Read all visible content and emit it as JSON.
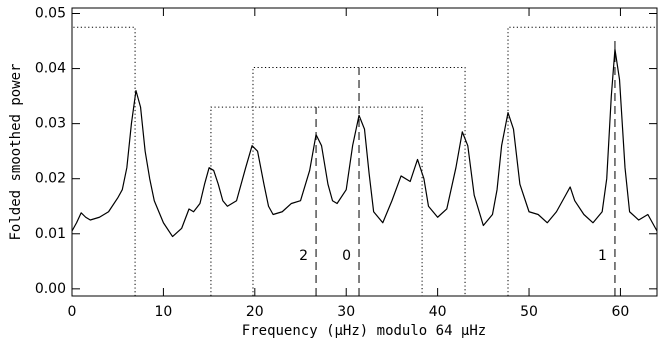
{
  "chart_data": {
    "type": "line",
    "xlabel": "Frequency (μHz) modulo 64 μHz",
    "ylabel": "Folded smoothed power",
    "x": [
      0,
      0.5,
      1,
      1.5,
      2,
      3,
      4,
      5,
      5.5,
      6,
      6.5,
      7,
      7.5,
      8,
      8.5,
      9,
      10,
      11,
      12,
      12.8,
      13.3,
      14,
      14.5,
      15,
      15.5,
      16,
      16.5,
      17,
      18,
      19,
      19.7,
      20.3,
      21,
      21.5,
      22,
      23,
      24,
      25,
      26,
      26.7,
      27.3,
      28,
      28.5,
      29,
      30,
      30.7,
      31.4,
      32,
      32.5,
      33,
      34,
      35,
      36,
      37,
      37.8,
      38.5,
      39,
      40,
      41,
      42,
      42.7,
      43.3,
      44,
      45,
      46,
      46.5,
      47,
      47.7,
      48.3,
      49,
      50,
      51,
      52,
      53,
      54,
      54.5,
      55,
      56,
      57,
      58,
      58.5,
      59,
      59.4,
      59.9,
      60.5,
      61,
      62,
      63,
      64
    ],
    "series": [
      {
        "color": "#000000",
        "values": [
          0.0105,
          0.012,
          0.0138,
          0.013,
          0.0125,
          0.013,
          0.014,
          0.0165,
          0.018,
          0.022,
          0.03,
          0.036,
          0.033,
          0.025,
          0.02,
          0.016,
          0.012,
          0.0095,
          0.011,
          0.0145,
          0.014,
          0.0155,
          0.019,
          0.022,
          0.0215,
          0.019,
          0.016,
          0.015,
          0.016,
          0.022,
          0.026,
          0.025,
          0.019,
          0.015,
          0.0135,
          0.014,
          0.0155,
          0.016,
          0.0215,
          0.028,
          0.026,
          0.019,
          0.016,
          0.0155,
          0.018,
          0.026,
          0.0315,
          0.029,
          0.021,
          0.014,
          0.012,
          0.016,
          0.0205,
          0.0195,
          0.0235,
          0.02,
          0.015,
          0.013,
          0.0145,
          0.022,
          0.0285,
          0.026,
          0.017,
          0.0115,
          0.0135,
          0.018,
          0.026,
          0.032,
          0.029,
          0.019,
          0.014,
          0.0135,
          0.012,
          0.014,
          0.017,
          0.0185,
          0.016,
          0.0135,
          0.012,
          0.014,
          0.02,
          0.035,
          0.0435,
          0.038,
          0.022,
          0.014,
          0.0125,
          0.0135,
          0.0105
        ]
      }
    ],
    "boxes": [
      {
        "x0": 0,
        "x1": 6.9,
        "y": 0.0475
      },
      {
        "x0": 15.2,
        "x1": 38.3,
        "y": 0.033
      },
      {
        "x0": 19.8,
        "x1": 43.0,
        "y": 0.0402
      },
      {
        "x0": 47.7,
        "x1": 64,
        "y": 0.0475
      }
    ],
    "markers": [
      {
        "x": 26.7,
        "y": 0.033,
        "label": "2"
      },
      {
        "x": 31.4,
        "y": 0.0402,
        "label": "0"
      },
      {
        "x": 59.4,
        "y": 0.0455,
        "label": "1"
      }
    ],
    "xlim": [
      0,
      64
    ],
    "ylim": [
      -0.0013,
      0.051
    ],
    "xticks": [
      0,
      10,
      20,
      30,
      40,
      50,
      60
    ],
    "yticks": [
      {
        "value": 0,
        "label": "0.00"
      },
      {
        "value": 0.01,
        "label": "0.01"
      },
      {
        "value": 0.02,
        "label": "0.02"
      },
      {
        "value": 0.03,
        "label": "0.03"
      },
      {
        "value": 0.04,
        "label": "0.04"
      },
      {
        "value": 0.05,
        "label": "0.05"
      }
    ]
  }
}
